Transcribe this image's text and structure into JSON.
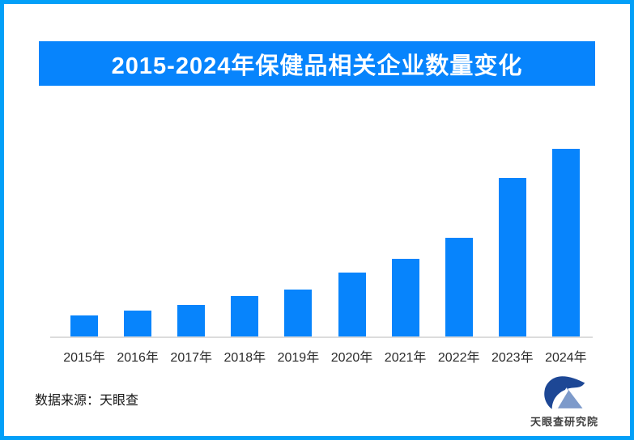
{
  "page": {
    "background": "#ffffff",
    "border_color": "#02a0f8"
  },
  "title_banner": {
    "text": "2015-2024年保健品相关企业数量变化",
    "bg_color": "#0784fc",
    "text_color": "#ffffff"
  },
  "chart_data": {
    "type": "bar",
    "title": "2015-2024年保健品相关企业数量变化",
    "categories": [
      "2015年",
      "2016年",
      "2017年",
      "2018年",
      "2019年",
      "2020年",
      "2021年",
      "2022年",
      "2023年",
      "2024年"
    ],
    "values": [
      11.2,
      13.8,
      16.8,
      21.6,
      25.0,
      34.1,
      41.4,
      52.6,
      84.5,
      100.0
    ],
    "xlabel": "",
    "ylabel": "",
    "ylim": [
      0,
      100
    ],
    "grid": false,
    "legend": false,
    "bar_color": "#0784fc",
    "axis_line_color": "#dcdcdc",
    "tick_label_color": "#2b2b2b"
  },
  "footer": {
    "source_text": "数据来源：天眼查",
    "logo_text": "天眼查研究院",
    "logo_navy_color": "#1d4795",
    "logo_light_blue_color": "#7d9aca"
  }
}
